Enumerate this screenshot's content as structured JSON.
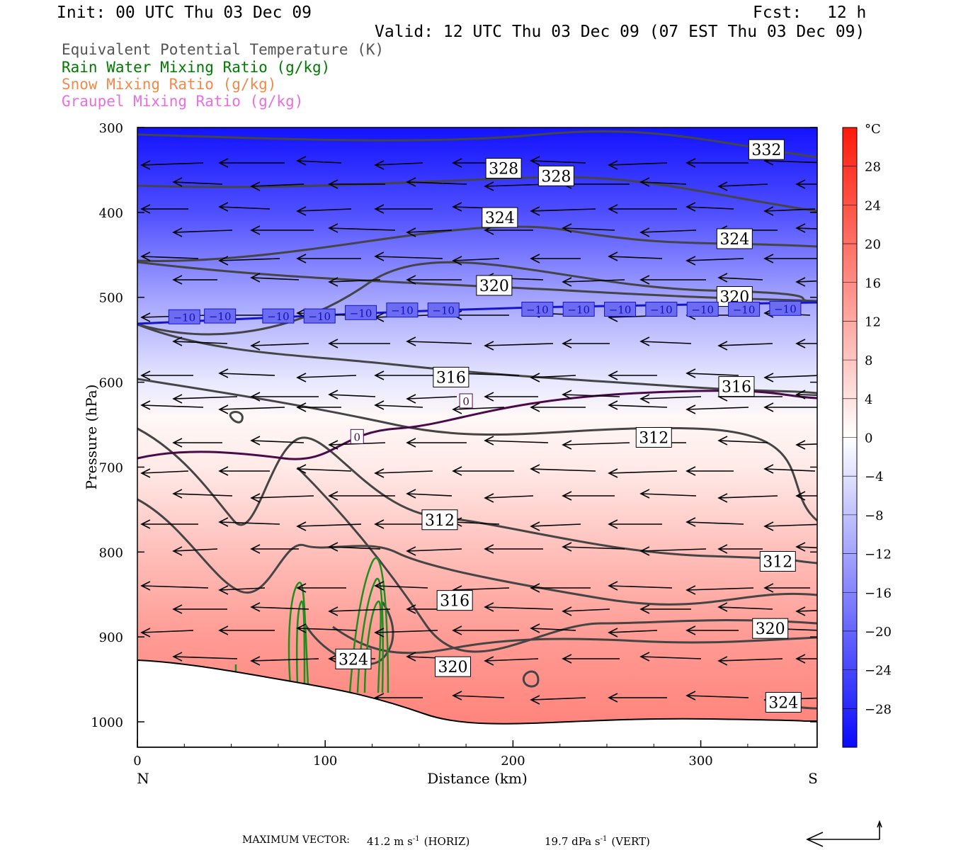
{
  "header": {
    "init": "Init: 00 UTC Thu 03 Dec 09",
    "fcst_label": "Fcst:",
    "fcst_value": "12 h",
    "valid": "Valid: 12 UTC Thu 03 Dec 09 (07 EST Thu 03 Dec 09)"
  },
  "legend": [
    {
      "label": "Equivalent Potential Temperature (K)",
      "color": "#555555"
    },
    {
      "label": "Rain Water Mixing Ratio (g/kg)",
      "color": "#007a00"
    },
    {
      "label": "Snow Mixing Ratio (g/kg)",
      "color": "#f08a4b"
    },
    {
      "label": "Graupel Mixing Ratio (g/kg)",
      "color": "#e86fe0"
    }
  ],
  "footer": {
    "max_vector_label": "MAXIMUM VECTOR:",
    "horiz_value": "41.2 m s",
    "horiz_exp": "-1",
    "horiz_tag": "(HORIZ)",
    "vert_value": "19.7 dPa s",
    "vert_exp": "-1",
    "vert_tag": "(VERT)"
  },
  "chart_data": {
    "type": "contour-cross-section",
    "xlabel": "Distance (km)",
    "ylabel": "Pressure (hPa)",
    "xlim": [
      0,
      362
    ],
    "ylim": [
      300,
      1030
    ],
    "x_ticks": [
      "0",
      "100",
      "200",
      "300"
    ],
    "x_tick_values": [
      0,
      100,
      200,
      300
    ],
    "x_end_labels": {
      "left": "N",
      "right": "S"
    },
    "y_ticks": [
      "300",
      "400",
      "500",
      "600",
      "700",
      "800",
      "900",
      "1000"
    ],
    "y_tick_values": [
      300,
      400,
      500,
      600,
      700,
      800,
      900,
      1000
    ],
    "colorbar": {
      "unit": "°C",
      "tick_labels": [
        "28",
        "24",
        "20",
        "16",
        "12",
        "8",
        "4",
        "0",
        "−4",
        "−8",
        "−12",
        "−16",
        "−20",
        "−24",
        "−28"
      ],
      "tick_values": [
        28,
        24,
        20,
        16,
        12,
        8,
        4,
        0,
        -4,
        -8,
        -12,
        -16,
        -20,
        -24,
        -28
      ],
      "range": [
        -32,
        32
      ],
      "warm_color": "#ff2a1a",
      "cold_color": "#1010f0"
    },
    "temperature_field": [
      {
        "p": 300,
        "t": -31
      },
      {
        "p": 400,
        "t": -23
      },
      {
        "p": 500,
        "t": -12
      },
      {
        "p": 600,
        "t": -3
      },
      {
        "p": 640,
        "t": 1
      },
      {
        "p": 700,
        "t": 3
      },
      {
        "p": 800,
        "t": 9
      },
      {
        "p": 900,
        "t": 14
      },
      {
        "p": 1000,
        "t": 17
      }
    ],
    "theta_e_labels": [
      {
        "text": "332",
        "x": 335,
        "p": 326
      },
      {
        "text": "328",
        "x": 195,
        "p": 348
      },
      {
        "text": "328",
        "x": 223,
        "p": 357
      },
      {
        "text": "324",
        "x": 193,
        "p": 406
      },
      {
        "text": "324",
        "x": 318,
        "p": 431
      },
      {
        "text": "320",
        "x": 190,
        "p": 486
      },
      {
        "text": "320",
        "x": 318,
        "p": 499
      },
      {
        "text": "316",
        "x": 167,
        "p": 594
      },
      {
        "text": "316",
        "x": 319,
        "p": 605
      },
      {
        "text": "312",
        "x": 275,
        "p": 665
      },
      {
        "text": "312",
        "x": 161,
        "p": 762
      },
      {
        "text": "312",
        "x": 341,
        "p": 811
      },
      {
        "text": "316",
        "x": 169,
        "p": 857
      },
      {
        "text": "320",
        "x": 337,
        "p": 890
      },
      {
        "text": "320",
        "x": 168,
        "p": 935
      },
      {
        "text": "324",
        "x": 115,
        "p": 926
      },
      {
        "text": "324",
        "x": 344,
        "p": 977
      }
    ],
    "isotherm_labels": [
      {
        "text": "−10",
        "x": 25,
        "p": 523
      },
      {
        "text": "−10",
        "x": 44,
        "p": 522
      },
      {
        "text": "−10",
        "x": 75,
        "p": 522
      },
      {
        "text": "−10",
        "x": 97,
        "p": 522
      },
      {
        "text": "−10",
        "x": 119,
        "p": 518
      },
      {
        "text": "−10",
        "x": 141,
        "p": 515
      },
      {
        "text": "−10",
        "x": 163,
        "p": 515
      },
      {
        "text": "−10",
        "x": 213,
        "p": 514
      },
      {
        "text": "−10",
        "x": 235,
        "p": 514
      },
      {
        "text": "−10",
        "x": 257,
        "p": 514
      },
      {
        "text": "−10",
        "x": 279,
        "p": 514
      },
      {
        "text": "−10",
        "x": 301,
        "p": 514
      },
      {
        "text": "−10",
        "x": 323,
        "p": 514
      },
      {
        "text": "−10",
        "x": 345,
        "p": 513
      },
      {
        "text": "0",
        "x": 175,
        "p": 622
      },
      {
        "text": "0",
        "x": 117,
        "p": 664
      }
    ]
  }
}
